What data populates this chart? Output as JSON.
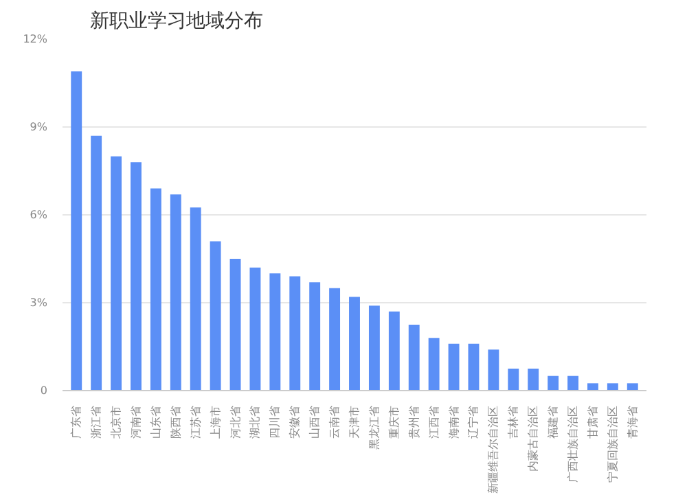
{
  "chart_data": {
    "type": "bar",
    "title": "新职业学习地域分布",
    "categories": [
      "广东省",
      "浙江省",
      "北京市",
      "河南省",
      "山东省",
      "陕西省",
      "江苏省",
      "上海市",
      "河北省",
      "湖北省",
      "四川省",
      "安徽省",
      "山西省",
      "云南省",
      "天津市",
      "黑龙江省",
      "重庆市",
      "贵州省",
      "江西省",
      "海南省",
      "辽宁省",
      "新疆维吾尔自治区",
      "吉林省",
      "内蒙古自治区",
      "福建省",
      "广西壮族自治区",
      "甘肃省",
      "宁夏回族自治区",
      "青海省"
    ],
    "values": [
      10.9,
      8.7,
      8.0,
      7.8,
      6.9,
      6.7,
      6.25,
      5.1,
      4.5,
      4.2,
      4.0,
      3.9,
      3.7,
      3.5,
      3.2,
      2.9,
      2.7,
      2.25,
      1.8,
      1.6,
      1.6,
      1.4,
      0.75,
      0.75,
      0.5,
      0.5,
      0.25,
      0.25,
      0.25
    ],
    "color": "#5b8ff6",
    "ylim": [
      0,
      12
    ],
    "yticks": [
      {
        "value": 0,
        "label": "0"
      },
      {
        "value": 3,
        "label": "3%"
      },
      {
        "value": 6,
        "label": "6%"
      },
      {
        "value": 9,
        "label": "9%"
      },
      {
        "value": 12,
        "label": "12%"
      }
    ],
    "grid": "y"
  }
}
